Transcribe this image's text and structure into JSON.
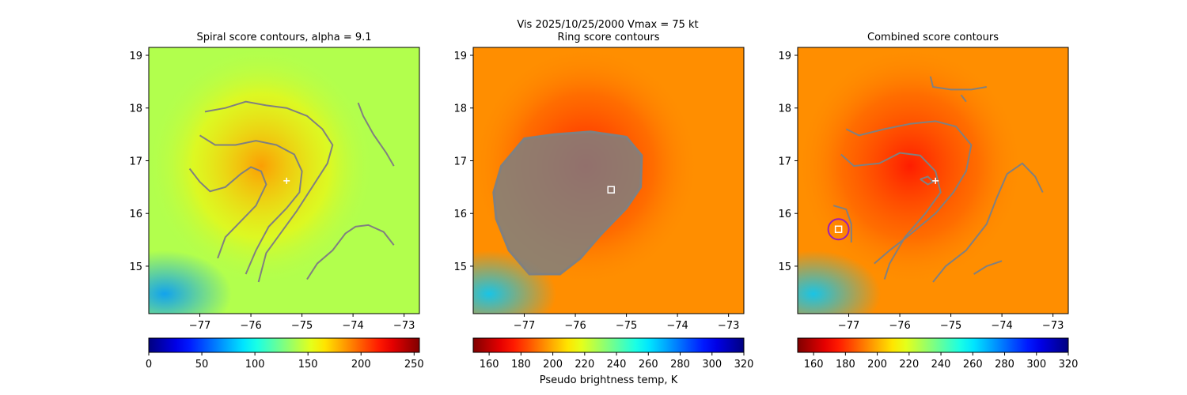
{
  "suptitle": "Vis  2025/10/25/2000    Vmax = 75 kt",
  "colorbar_label": "Pseudo brightness temp, K",
  "chart_data": [
    {
      "type": "heatmap",
      "title": "Spiral score contours, alpha =  9.1",
      "xlim": [
        -78.0,
        -72.7
      ],
      "ylim": [
        14.1,
        19.15
      ],
      "xticks": [
        -77,
        -76,
        -75,
        -74,
        -73
      ],
      "xtick_labels": [
        "−77",
        "−76",
        "−75",
        "−74",
        "−73"
      ],
      "yticks": [
        15,
        16,
        17,
        18,
        19
      ],
      "ytick_labels": [
        "15",
        "16",
        "17",
        "18",
        "19"
      ],
      "colormap": "jet",
      "colorbar": {
        "range": [
          0,
          255
        ],
        "ticks": [
          0,
          50,
          100,
          150,
          200,
          250
        ],
        "reversed": false
      },
      "field": {
        "background_value": 140,
        "center": [
          -75.8,
          16.9
        ],
        "core_value": 185,
        "south_west_value": 70
      },
      "center_marker": {
        "x": -75.3,
        "y": 16.62,
        "symbol": "+",
        "color": "#ffffff"
      },
      "contour_color": "#808080",
      "contours": [
        [
          [
            -76.9,
            17.93
          ],
          [
            -76.5,
            18.0
          ],
          [
            -76.1,
            18.12
          ],
          [
            -75.7,
            18.05
          ],
          [
            -75.3,
            18.0
          ],
          [
            -74.9,
            17.85
          ],
          [
            -74.6,
            17.6
          ],
          [
            -74.4,
            17.3
          ],
          [
            -74.5,
            16.95
          ],
          [
            -74.8,
            16.5
          ],
          [
            -75.1,
            16.05
          ],
          [
            -75.4,
            15.65
          ],
          [
            -75.7,
            15.25
          ],
          [
            -75.85,
            14.7
          ]
        ],
        [
          [
            -77.0,
            17.48
          ],
          [
            -76.7,
            17.3
          ],
          [
            -76.3,
            17.3
          ],
          [
            -75.9,
            17.38
          ],
          [
            -75.5,
            17.3
          ],
          [
            -75.15,
            17.12
          ],
          [
            -75.0,
            16.8
          ],
          [
            -75.05,
            16.4
          ],
          [
            -75.3,
            16.1
          ],
          [
            -75.65,
            15.75
          ],
          [
            -75.9,
            15.3
          ],
          [
            -76.1,
            14.85
          ]
        ],
        [
          [
            -77.2,
            16.85
          ],
          [
            -77.0,
            16.6
          ],
          [
            -76.8,
            16.42
          ],
          [
            -76.5,
            16.5
          ],
          [
            -76.2,
            16.75
          ],
          [
            -76.0,
            16.88
          ],
          [
            -75.8,
            16.8
          ],
          [
            -75.7,
            16.55
          ],
          [
            -75.9,
            16.15
          ],
          [
            -76.2,
            15.85
          ],
          [
            -76.5,
            15.55
          ],
          [
            -76.65,
            15.15
          ]
        ],
        [
          [
            -73.9,
            18.1
          ],
          [
            -73.8,
            17.85
          ],
          [
            -73.6,
            17.5
          ],
          [
            -73.35,
            17.15
          ],
          [
            -73.2,
            16.9
          ]
        ],
        [
          [
            -74.9,
            14.75
          ],
          [
            -74.7,
            15.05
          ],
          [
            -74.4,
            15.3
          ],
          [
            -74.15,
            15.62
          ],
          [
            -73.95,
            15.75
          ],
          [
            -73.7,
            15.78
          ],
          [
            -73.4,
            15.65
          ],
          [
            -73.2,
            15.4
          ]
        ]
      ]
    },
    {
      "type": "heatmap",
      "title": "Ring score contours",
      "xlim": [
        -78.0,
        -72.7
      ],
      "ylim": [
        14.1,
        19.15
      ],
      "xticks": [
        -77,
        -76,
        -75,
        -74,
        -73
      ],
      "xtick_labels": [
        "−77",
        "−76",
        "−75",
        "−74",
        "−73"
      ],
      "yticks": [
        15,
        16,
        17,
        18,
        19
      ],
      "ytick_labels": [
        "15",
        "16",
        "17",
        "18",
        "19"
      ],
      "colormap": "jet_r",
      "colorbar": {
        "range": [
          150,
          320
        ],
        "ticks": [
          160,
          180,
          200,
          220,
          240,
          260,
          280,
          300,
          320
        ],
        "reversed": true
      },
      "field": {
        "background_value": 195,
        "center": [
          -75.8,
          16.9
        ],
        "core_value": 175,
        "south_west_value": 265
      },
      "center_marker": {
        "x": -75.3,
        "y": 16.45,
        "symbol": "square",
        "color": "#ffffff"
      },
      "contour_color": "#808080",
      "ring_region": [
        [
          -77.45,
          16.9
        ],
        [
          -77.0,
          17.42
        ],
        [
          -76.4,
          17.5
        ],
        [
          -75.7,
          17.55
        ],
        [
          -75.0,
          17.45
        ],
        [
          -74.7,
          17.1
        ],
        [
          -74.72,
          16.5
        ],
        [
          -75.0,
          16.1
        ],
        [
          -75.5,
          15.6
        ],
        [
          -75.9,
          15.15
        ],
        [
          -76.3,
          14.85
        ],
        [
          -76.9,
          14.85
        ],
        [
          -77.3,
          15.3
        ],
        [
          -77.55,
          15.9
        ],
        [
          -77.6,
          16.4
        ]
      ]
    },
    {
      "type": "heatmap",
      "title": "Combined score contours",
      "xlim": [
        -78.0,
        -72.7
      ],
      "ylim": [
        14.1,
        19.15
      ],
      "xticks": [
        -77,
        -76,
        -75,
        -74,
        -73
      ],
      "xtick_labels": [
        "−77",
        "−76",
        "−75",
        "−74",
        "−73"
      ],
      "yticks": [
        15,
        16,
        17,
        18,
        19
      ],
      "ytick_labels": [
        "15",
        "16",
        "17",
        "18",
        "19"
      ],
      "colormap": "jet_r",
      "colorbar": {
        "range": [
          150,
          320
        ],
        "ticks": [
          160,
          180,
          200,
          220,
          240,
          260,
          280,
          300,
          320
        ],
        "reversed": true
      },
      "field": {
        "background_value": 195,
        "center": [
          -75.8,
          16.9
        ],
        "core_value": 175,
        "south_west_value": 265
      },
      "center_marker": {
        "x": -75.3,
        "y": 16.62,
        "symbol": "+",
        "color": "#ffffff"
      },
      "best_marker": {
        "x": -77.2,
        "y": 15.7,
        "symbol": "square",
        "color": "#ffffff",
        "circle_color": "#9b1fb5"
      },
      "contour_color": "#808080",
      "contours": [
        [
          [
            -75.4,
            18.6
          ],
          [
            -75.35,
            18.4
          ],
          [
            -75.0,
            18.35
          ],
          [
            -74.6,
            18.35
          ],
          [
            -74.3,
            18.4
          ]
        ],
        [
          [
            -77.05,
            17.6
          ],
          [
            -76.8,
            17.48
          ],
          [
            -76.3,
            17.6
          ],
          [
            -75.8,
            17.7
          ],
          [
            -75.3,
            17.75
          ],
          [
            -74.9,
            17.65
          ],
          [
            -74.6,
            17.3
          ],
          [
            -74.7,
            16.8
          ],
          [
            -74.95,
            16.4
          ],
          [
            -75.3,
            16.0
          ],
          [
            -75.8,
            15.6
          ],
          [
            -76.2,
            15.3
          ],
          [
            -76.5,
            15.05
          ]
        ],
        [
          [
            -77.15,
            17.12
          ],
          [
            -76.9,
            16.9
          ],
          [
            -76.4,
            16.95
          ],
          [
            -76.0,
            17.15
          ],
          [
            -75.6,
            17.1
          ],
          [
            -75.3,
            16.8
          ],
          [
            -75.2,
            16.4
          ],
          [
            -75.5,
            16.0
          ],
          [
            -75.9,
            15.55
          ],
          [
            -76.2,
            15.05
          ],
          [
            -76.3,
            14.75
          ]
        ],
        [
          [
            -75.6,
            16.65
          ],
          [
            -75.45,
            16.55
          ],
          [
            -75.35,
            16.6
          ],
          [
            -75.45,
            16.7
          ],
          [
            -75.6,
            16.65
          ]
        ],
        [
          [
            -77.3,
            16.15
          ],
          [
            -77.05,
            16.08
          ],
          [
            -76.95,
            15.8
          ],
          [
            -76.95,
            15.45
          ]
        ],
        [
          [
            -75.35,
            14.7
          ],
          [
            -75.1,
            15.0
          ],
          [
            -74.7,
            15.3
          ],
          [
            -74.3,
            15.8
          ],
          [
            -74.1,
            16.3
          ],
          [
            -73.9,
            16.75
          ],
          [
            -73.6,
            16.95
          ],
          [
            -73.35,
            16.7
          ],
          [
            -73.2,
            16.4
          ]
        ],
        [
          [
            -74.55,
            14.85
          ],
          [
            -74.3,
            15.0
          ],
          [
            -74.0,
            15.1
          ]
        ],
        [
          [
            -74.8,
            18.25
          ],
          [
            -74.7,
            18.12
          ]
        ]
      ]
    }
  ]
}
